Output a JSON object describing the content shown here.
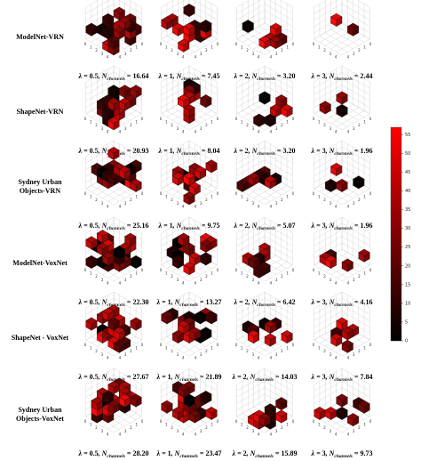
{
  "rows": [
    {
      "label": [
        "ModelNet-VRN"
      ],
      "captions": [
        {
          "lambda": "0.5",
          "n": "16.64"
        },
        {
          "lambda": "1",
          "n": "7.45"
        },
        {
          "lambda": "2",
          "n": "3.20"
        },
        {
          "lambda": "3",
          "n": "2.44"
        }
      ]
    },
    {
      "label": [
        "ShapeNet-VRN"
      ],
      "captions": [
        {
          "lambda": "0.5",
          "n": "20.93"
        },
        {
          "lambda": "1",
          "n": "8.04"
        },
        {
          "lambda": "2",
          "n": "3.20"
        },
        {
          "lambda": "3",
          "n": "1.96"
        }
      ]
    },
    {
      "label": [
        "Sydney Urban",
        "Objects-VRN"
      ],
      "captions": [
        {
          "lambda": "0.5",
          "n": "25.16"
        },
        {
          "lambda": "1",
          "n": "9.75"
        },
        {
          "lambda": "2",
          "n": "5.07"
        },
        {
          "lambda": "3",
          "n": "1.96"
        }
      ]
    },
    {
      "label": [
        "ModelNet-VoxNet"
      ],
      "captions": [
        {
          "lambda": "0.5",
          "n": "22.30"
        },
        {
          "lambda": "1",
          "n": "13.27"
        },
        {
          "lambda": "2",
          "n": "6.42"
        },
        {
          "lambda": "3",
          "n": "4.16"
        }
      ]
    },
    {
      "label": [
        "ShapeNet - VoxNet"
      ],
      "captions": [
        {
          "lambda": "0.5",
          "n": "27.67"
        },
        {
          "lambda": "1",
          "n": "21.89"
        },
        {
          "lambda": "2",
          "n": "14.03"
        },
        {
          "lambda": "3",
          "n": "7.84"
        }
      ]
    },
    {
      "label": [
        "Sydney Urban",
        "Objects-VoxNet"
      ],
      "captions": [
        {
          "lambda": "0.5",
          "n": "28.20"
        },
        {
          "lambda": "1",
          "n": "23.47"
        },
        {
          "lambda": "2",
          "n": "15.89"
        },
        {
          "lambda": "3",
          "n": "9.73"
        }
      ]
    }
  ],
  "caption_text": {
    "lambda": "λ = ",
    "n": ", N",
    "sub": "channels",
    "eq": " = "
  },
  "axis_ticks": [
    "0",
    "1",
    "2",
    "3",
    "4"
  ],
  "chart_data": {
    "type": "colorbar",
    "ylim": [
      0,
      57
    ],
    "yticks": [
      0,
      5,
      10,
      15,
      20,
      25,
      30,
      35,
      40,
      45,
      50,
      55
    ],
    "colors": [
      "#000000",
      "#ff0000"
    ]
  }
}
